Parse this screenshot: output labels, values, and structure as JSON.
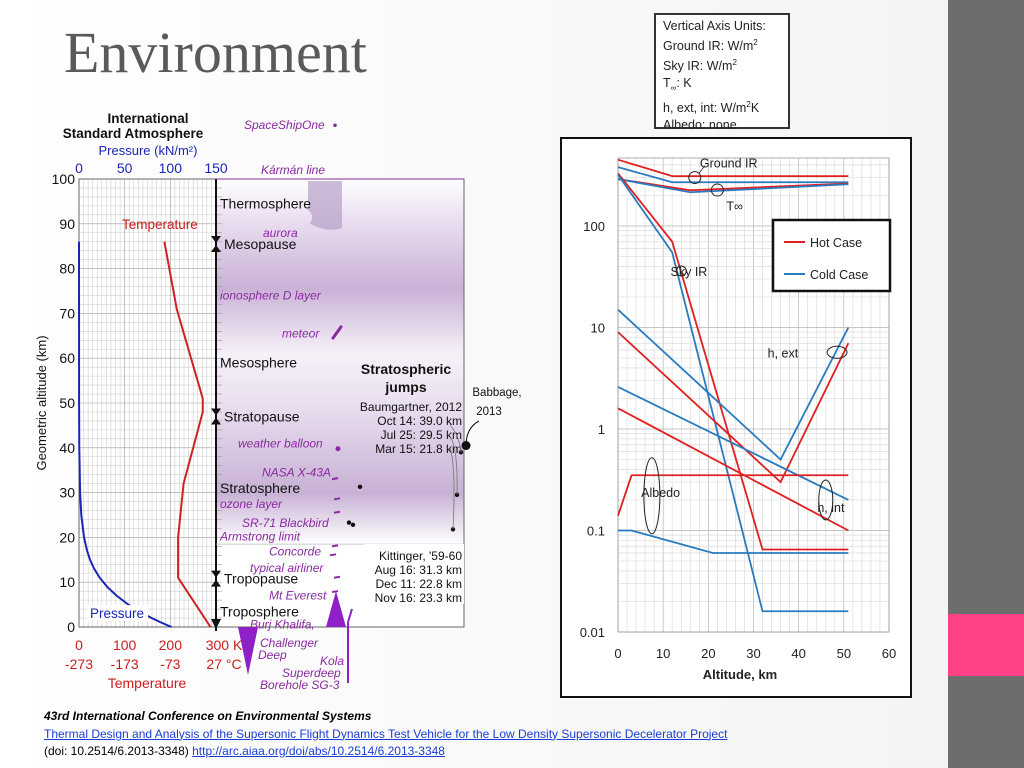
{
  "slide": {
    "title": "Environment",
    "colors": {
      "side_bar": "#6d6d6d",
      "accent": "#ff3f86",
      "title": "#5a5a5a"
    },
    "units_box": {
      "lines": [
        {
          "text": "Vertical Axis Units:",
          "sup": "",
          "rest": ""
        },
        {
          "text": "Ground  IR: W/m",
          "sup": "2",
          "rest": ""
        },
        {
          "text": "Sky IR: W/m",
          "sup": "2",
          "rest": ""
        },
        {
          "text": "T",
          "sub": "∞",
          "rest": ": K"
        },
        {
          "text": "h, ext,  int: W/m",
          "sup": "2",
          "rest": "K"
        },
        {
          "text": "Albedo:  none",
          "sup": "",
          "rest": ""
        }
      ]
    },
    "citation": {
      "conference": "43rd International Conference on Environmental Systems",
      "paper_title": "Thermal Design and Analysis of the Supersonic Flight Dynamics Test Vehicle for the Low Density Supersonic Decelerator Project",
      "doi_text": "(doi: 10.2514/6.2013-3348)",
      "url": "http://arc.aiaa.org/doi/abs/10.2514/6.2013-3348"
    }
  },
  "chart_data": [
    {
      "type": "line",
      "title": "International Standard Atmosphere",
      "top_axis_label": "Pressure (kN/m²)",
      "top_ticks": [
        "0",
        "50",
        "100",
        "150"
      ],
      "ylabel": "Geometric altitude (km)",
      "ylim": [
        0,
        100
      ],
      "y_ticks": [
        "0",
        "10",
        "20",
        "30",
        "40",
        "50",
        "60",
        "70",
        "80",
        "90",
        "100"
      ],
      "bottom_ticks_k": [
        "0",
        "100",
        "200",
        "300 K"
      ],
      "bottom_ticks_c": [
        "-273",
        "-173",
        "-73",
        "27 °C"
      ],
      "bottom_axis_label": "Temperature",
      "grid": true,
      "series": [
        {
          "name": "Temperature",
          "color": "#cc2222",
          "unit": "K",
          "points": [
            [
              288,
              0
            ],
            [
              217,
              11
            ],
            [
              217,
              20
            ],
            [
              229,
              32
            ],
            [
              271,
              48
            ],
            [
              271,
              51
            ],
            [
              214,
              71
            ],
            [
              187,
              86
            ]
          ]
        },
        {
          "name": "Pressure",
          "color": "#1a25b8",
          "unit": "kN/m²",
          "points": [
            [
              101.3,
              0
            ],
            [
              89.9,
              1
            ],
            [
              79.5,
              2
            ],
            [
              70.1,
              3
            ],
            [
              61.6,
              4
            ],
            [
              54.0,
              5
            ],
            [
              41.1,
              7
            ],
            [
              30.7,
              9
            ],
            [
              22.7,
              11
            ],
            [
              16.6,
              13
            ],
            [
              12.1,
              15
            ],
            [
              8.9,
              17
            ],
            [
              5.5,
              20
            ],
            [
              2.5,
              25
            ],
            [
              1.2,
              30
            ],
            [
              0.3,
              40
            ],
            [
              0.1,
              50
            ],
            [
              0.0,
              86
            ]
          ]
        }
      ],
      "layer_labels": [
        {
          "text": "Thermosphere",
          "alt": 94.5,
          "style": "plain"
        },
        {
          "text": "Mesopause",
          "alt": 85.5,
          "style": "boundary"
        },
        {
          "text": "Mesosphere",
          "alt": 59,
          "style": "plain"
        },
        {
          "text": "Stratopause",
          "alt": 47,
          "style": "boundary"
        },
        {
          "text": "Stratosphere",
          "alt": 31,
          "style": "plain"
        },
        {
          "text": "Tropopause",
          "alt": 10.8,
          "style": "boundary"
        },
        {
          "text": "Troposphere",
          "alt": 3.5,
          "style": "plain"
        }
      ],
      "annotations": [
        {
          "text": "SpaceShipOne",
          "alt": 112
        },
        {
          "text": "Kármán line",
          "alt": 102
        },
        {
          "text": "aurora",
          "alt": 88
        },
        {
          "text": "ionosphere D layer",
          "alt": 74
        },
        {
          "text": "meteor",
          "alt": 65.5
        },
        {
          "text": "weather balloon",
          "alt": 41
        },
        {
          "text": "NASA X-43A",
          "alt": 34.5
        },
        {
          "text": "ozone layer",
          "alt": 27.5
        },
        {
          "text": "SR-71 Blackbird",
          "alt": 23.2
        },
        {
          "text": "Armstrong limit",
          "alt": 20.2
        },
        {
          "text": "Concorde",
          "alt": 16.8
        },
        {
          "text": "typical airliner",
          "alt": 13.2
        },
        {
          "text": "Mt Everest",
          "alt": 7
        },
        {
          "text": "Burj Khalifa",
          "alt": 0.6
        },
        {
          "text": "Challenger",
          "alt": -3.6
        },
        {
          "text": "Deep",
          "alt": -6.3
        },
        {
          "text": "Kola",
          "alt": -7.6
        },
        {
          "text": "Superdeep",
          "alt": -10.3
        },
        {
          "text": "Borehole SG-3",
          "alt": -13
        }
      ],
      "jumps": {
        "title": [
          "Stratospheric",
          "jumps"
        ],
        "baumgartner": [
          "Baumgartner, 2012",
          "Oct 14: 39.0 km",
          "Jul 25: 29.5 km",
          "Mar 15: 21.8 km"
        ],
        "babbage": [
          "Babbage,",
          "2013"
        ],
        "kittinger": [
          "Kittinger, '59-60",
          "Aug 16: 31.3 km",
          "Dec 11: 22.8 km",
          "Nov 16: 23.3 km"
        ]
      }
    },
    {
      "type": "line",
      "xlabel": "Altitude, km",
      "ylabel": "",
      "xlim": [
        0,
        60
      ],
      "x_ticks": [
        "0",
        "10",
        "20",
        "30",
        "40",
        "50",
        "60"
      ],
      "yscale": "log",
      "ylim": [
        0.01,
        500
      ],
      "y_ticks": [
        "0.01",
        "0.1",
        "1",
        "10",
        "100"
      ],
      "grid": true,
      "legend": {
        "position": "top-right",
        "entries": [
          {
            "name": "Hot Case",
            "color": "#e02020"
          },
          {
            "name": "Cold Case",
            "color": "#2a7ac0"
          }
        ]
      },
      "series_labels": [
        {
          "text": "Ground IR",
          "x": 23,
          "y": 420
        },
        {
          "text": "T∞",
          "x": 24,
          "y": 160
        },
        {
          "text": "Sky IR",
          "x": 16.5,
          "y": 36
        },
        {
          "text": "h, ext",
          "x": 38,
          "y": 5.7
        },
        {
          "text": "Albedo",
          "x": 10,
          "y": 0.24
        },
        {
          "text": "h, int",
          "x": 49,
          "y": 0.17
        }
      ],
      "series": [
        {
          "name": "Hot Case",
          "color": "#e02020",
          "label": "Ground IR",
          "points": [
            [
              0,
              450
            ],
            [
              12,
              310
            ],
            [
              51,
              310
            ]
          ]
        },
        {
          "name": "Cold Case",
          "color": "#2a7ac0",
          "label": "Ground IR",
          "points": [
            [
              0,
              380
            ],
            [
              12,
              270
            ],
            [
              51,
              270
            ]
          ]
        },
        {
          "name": "Hot Case",
          "color": "#e02020",
          "label": "T∞",
          "points": [
            [
              0,
              290
            ],
            [
              16,
              225
            ],
            [
              51,
              262
            ]
          ]
        },
        {
          "name": "Cold Case",
          "color": "#2a7ac0",
          "label": "T∞",
          "points": [
            [
              0,
              290
            ],
            [
              16,
              215
            ],
            [
              51,
              258
            ]
          ]
        },
        {
          "name": "Hot Case",
          "color": "#e02020",
          "label": "Sky IR",
          "points": [
            [
              0,
              330
            ],
            [
              12,
              70
            ],
            [
              32,
              0.065
            ],
            [
              51,
              0.065
            ]
          ]
        },
        {
          "name": "Cold Case",
          "color": "#2a7ac0",
          "label": "Sky IR",
          "points": [
            [
              0,
              320
            ],
            [
              12,
              55
            ],
            [
              32,
              0.016
            ],
            [
              51,
              0.016
            ]
          ]
        },
        {
          "name": "Hot Case",
          "color": "#e02020",
          "label": "h, ext",
          "points": [
            [
              0,
              9
            ],
            [
              36,
              0.3
            ],
            [
              51,
              7
            ]
          ]
        },
        {
          "name": "Cold Case",
          "color": "#2a7ac0",
          "label": "h, ext",
          "points": [
            [
              0,
              15
            ],
            [
              36,
              0.5
            ],
            [
              51,
              10
            ]
          ]
        },
        {
          "name": "Hot Case",
          "color": "#e02020",
          "label": "h, int",
          "points": [
            [
              0,
              1.6
            ],
            [
              51,
              0.1
            ]
          ]
        },
        {
          "name": "Cold Case",
          "color": "#2a7ac0",
          "label": "h, int",
          "points": [
            [
              0,
              2.6
            ],
            [
              51,
              0.2
            ]
          ]
        },
        {
          "name": "Hot Case",
          "color": "#e02020",
          "label": "Albedo",
          "points": [
            [
              0,
              0.14
            ],
            [
              3,
              0.35
            ],
            [
              51,
              0.35
            ]
          ]
        },
        {
          "name": "Cold Case",
          "color": "#2a7ac0",
          "label": "Albedo",
          "points": [
            [
              0,
              0.1
            ],
            [
              3,
              0.1
            ],
            [
              21,
              0.06
            ],
            [
              51,
              0.06
            ]
          ]
        }
      ]
    }
  ]
}
